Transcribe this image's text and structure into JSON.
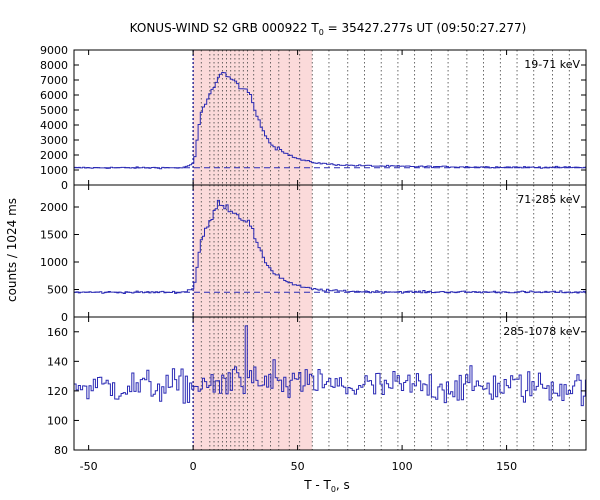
{
  "title_main": "KONUS-WIND S2 GRB 000922 T",
  "title_sub": "0",
  "title_rest": " = 35427.277s UT (09:50:27.277)",
  "ylabel": "counts / 1024 ms",
  "xlabel_main": "T - T",
  "xlabel_sub": "0",
  "xlabel_rest": ", s",
  "colors": {
    "series": "#2a2ab4",
    "background_line": "#2a2ab4",
    "shade": "#fbdada",
    "dotted": "#444444",
    "zero_line": "#000080"
  },
  "chart_data": {
    "type": "line",
    "title": "KONUS-WIND S2 GRB 000922 T0 = 35427.277s UT (09:50:27.277)",
    "xlabel": "T - T0, s",
    "ylabel": "counts / 1024 ms",
    "xlim": [
      -57,
      188
    ],
    "x_ticks": [
      -50,
      0,
      50,
      100,
      150
    ],
    "trigger_time": 0,
    "shaded_interval": [
      0,
      57
    ],
    "spectrum_boundaries": [
      0,
      3.9,
      8,
      10,
      12,
      14,
      16,
      18,
      20,
      22,
      24,
      26,
      29,
      33,
      37,
      41,
      46,
      51,
      57,
      65,
      74,
      82,
      90,
      98,
      106,
      114,
      122,
      131,
      139,
      147,
      155,
      163,
      172,
      180,
      188
    ],
    "panels": [
      {
        "label": "19-71 keV",
        "ylim": [
          0,
          9000
        ],
        "y_ticks": [
          0,
          1000,
          2000,
          3000,
          4000,
          5000,
          6000,
          7000,
          8000,
          9000
        ],
        "background": 1150,
        "pre_level": 1150,
        "peak_time": 13,
        "peak_value": 7600,
        "tail_level": 1400
      },
      {
        "label": "71-285 keV",
        "ylim": [
          0,
          2400
        ],
        "y_ticks": [
          0,
          500,
          1000,
          1500,
          2000
        ],
        "background": 450,
        "pre_level": 450,
        "peak_time": 12,
        "peak_value": 2100,
        "tail_level": 470
      },
      {
        "label": "285-1078 keV",
        "ylim": [
          80,
          170
        ],
        "y_ticks": [
          80,
          100,
          120,
          140,
          160
        ],
        "background": 123,
        "pre_level": 124,
        "peak_time": 25,
        "peak_value": 164,
        "tail_level": 123
      }
    ]
  }
}
